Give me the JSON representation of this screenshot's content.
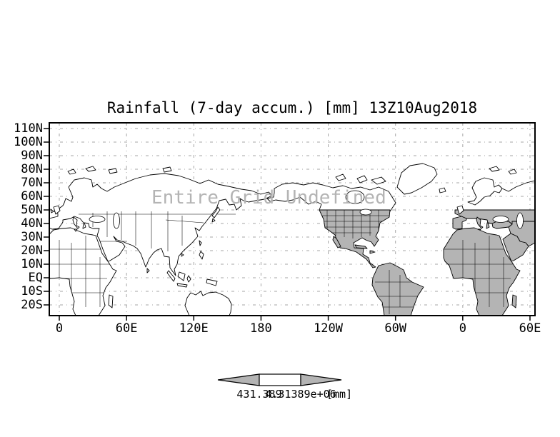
{
  "title": "Rainfall (7-day accum.) [mm] 13Z10Aug2018",
  "watermark": "Entire Grid Undefined",
  "axes": {
    "y_ticks": [
      "110N",
      "100N",
      "90N",
      "80N",
      "70N",
      "60N",
      "50N",
      "40N",
      "30N",
      "20N",
      "10N",
      "EQ",
      "10S",
      "20S"
    ],
    "x_ticks": [
      "0",
      "60E",
      "120E",
      "180",
      "120W",
      "60W",
      "0",
      "60E"
    ]
  },
  "colorbar": {
    "left_value": "431.389",
    "right_value": "4.31389e+06",
    "units": "[mm]"
  },
  "colors": {
    "undefined_shade": "#b4b4b4",
    "gridline": "#a6a6a6",
    "watermark": "#b4b4b4",
    "background": "#ffffff",
    "line": "#000000"
  }
}
